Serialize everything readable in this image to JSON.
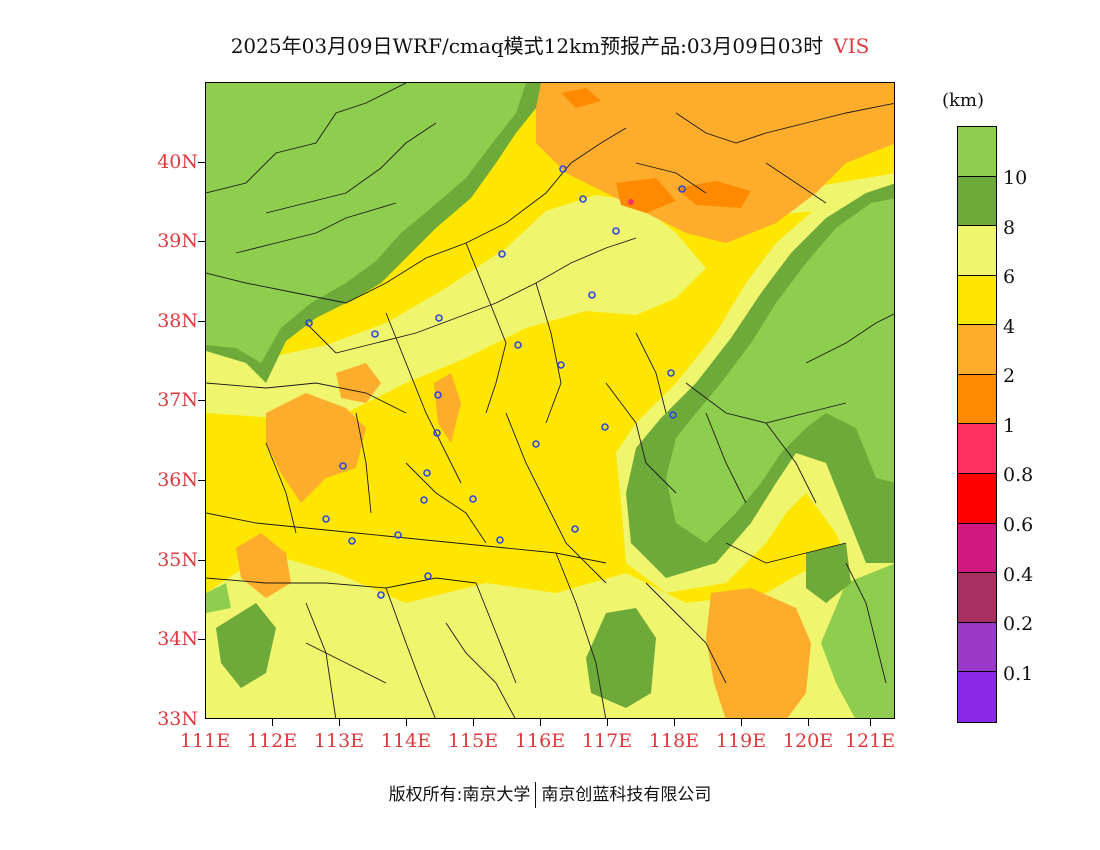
{
  "header": {
    "title": "2025年03月09日WRF/cmaq模式12km预报产品:03月09日03时",
    "variable": "VIS"
  },
  "map": {
    "lat_labels": [
      "40N",
      "39N",
      "38N",
      "37N",
      "36N",
      "35N",
      "34N",
      "33N"
    ],
    "lon_labels": [
      "111E",
      "112E",
      "113E",
      "114E",
      "115E",
      "116E",
      "117E",
      "118E",
      "119E",
      "120E",
      "121E"
    ],
    "lat_range": [
      33,
      41
    ],
    "lon_range": [
      111,
      121.3
    ]
  },
  "legend": {
    "unit": "(km)",
    "labels": [
      "10",
      "8",
      "6",
      "4",
      "2",
      "1",
      "0.8",
      "0.6",
      "0.4",
      "0.2",
      "0.1"
    ],
    "colors": [
      "#8fcd4e",
      "#6eaa3a",
      "#f0f56e",
      "#ffe600",
      "#fdad2b",
      "#ff8a00",
      "#ff3060",
      "#ff0000",
      "#d01880",
      "#a83060",
      "#9a38c8",
      "#8a28e8"
    ]
  },
  "footer": {
    "copyright": "版权所有:南京大学",
    "company": "南京创蓝科技有限公司"
  }
}
